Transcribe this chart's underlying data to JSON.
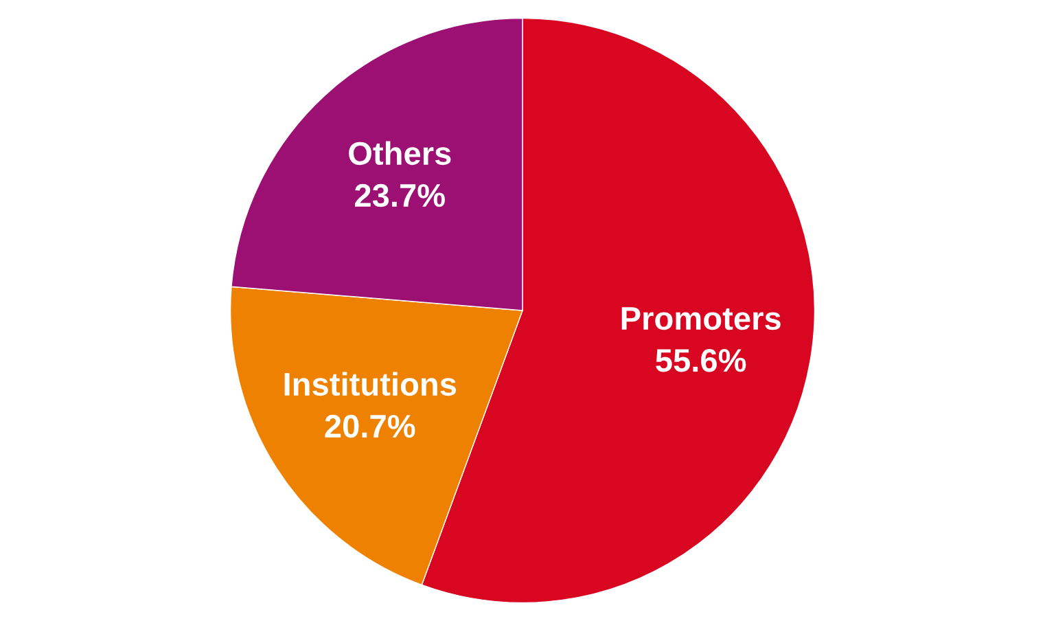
{
  "chart_data": {
    "type": "pie",
    "categories": [
      "Promoters",
      "Institutions",
      "Others"
    ],
    "values": [
      55.6,
      20.7,
      23.7
    ],
    "colors": [
      "#d90622",
      "#ee8200",
      "#9c0f73"
    ],
    "value_labels": [
      "55.6%",
      "20.7%",
      "23.7%"
    ],
    "legend": false
  }
}
